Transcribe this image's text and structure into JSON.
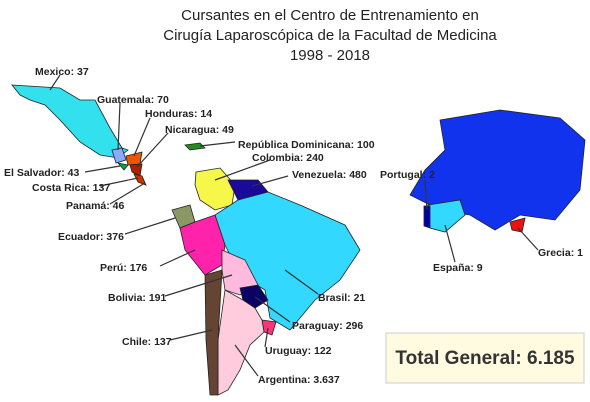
{
  "header": {
    "title_lines": [
      "Cursantes en el Centro de Entrenamiento en",
      "Cirugía Laparoscópica de la Facultad de Medicina",
      "1998 - 2018"
    ]
  },
  "labels": {
    "mexico": "Mexico: 37",
    "guatemala": "Guatemala: 70",
    "honduras": "Honduras: 14",
    "nicaragua": "Nicaragua: 49",
    "dominicana": "República Dominicana: 100",
    "colombia": "Colombia: 240",
    "venezuela": "Venezuela: 480",
    "salvador": "El Salvador: 43",
    "costarica": "Costa Rica: 137",
    "panama": "Panamá: 46",
    "ecuador": "Ecuador: 376",
    "peru": "Perú: 176",
    "bolivia": "Bolivia: 191",
    "brasil": "Brasil: 21",
    "paraguay": "Paraguay: 296",
    "chile": "Chile: 137",
    "uruguay": "Uruguay: 122",
    "argentina": "Argentina: 3.637",
    "portugal": "Portugal: 2",
    "grecia": "Grecia: 1",
    "espana": "España: 9"
  },
  "total": "Total General: 6.185"
}
